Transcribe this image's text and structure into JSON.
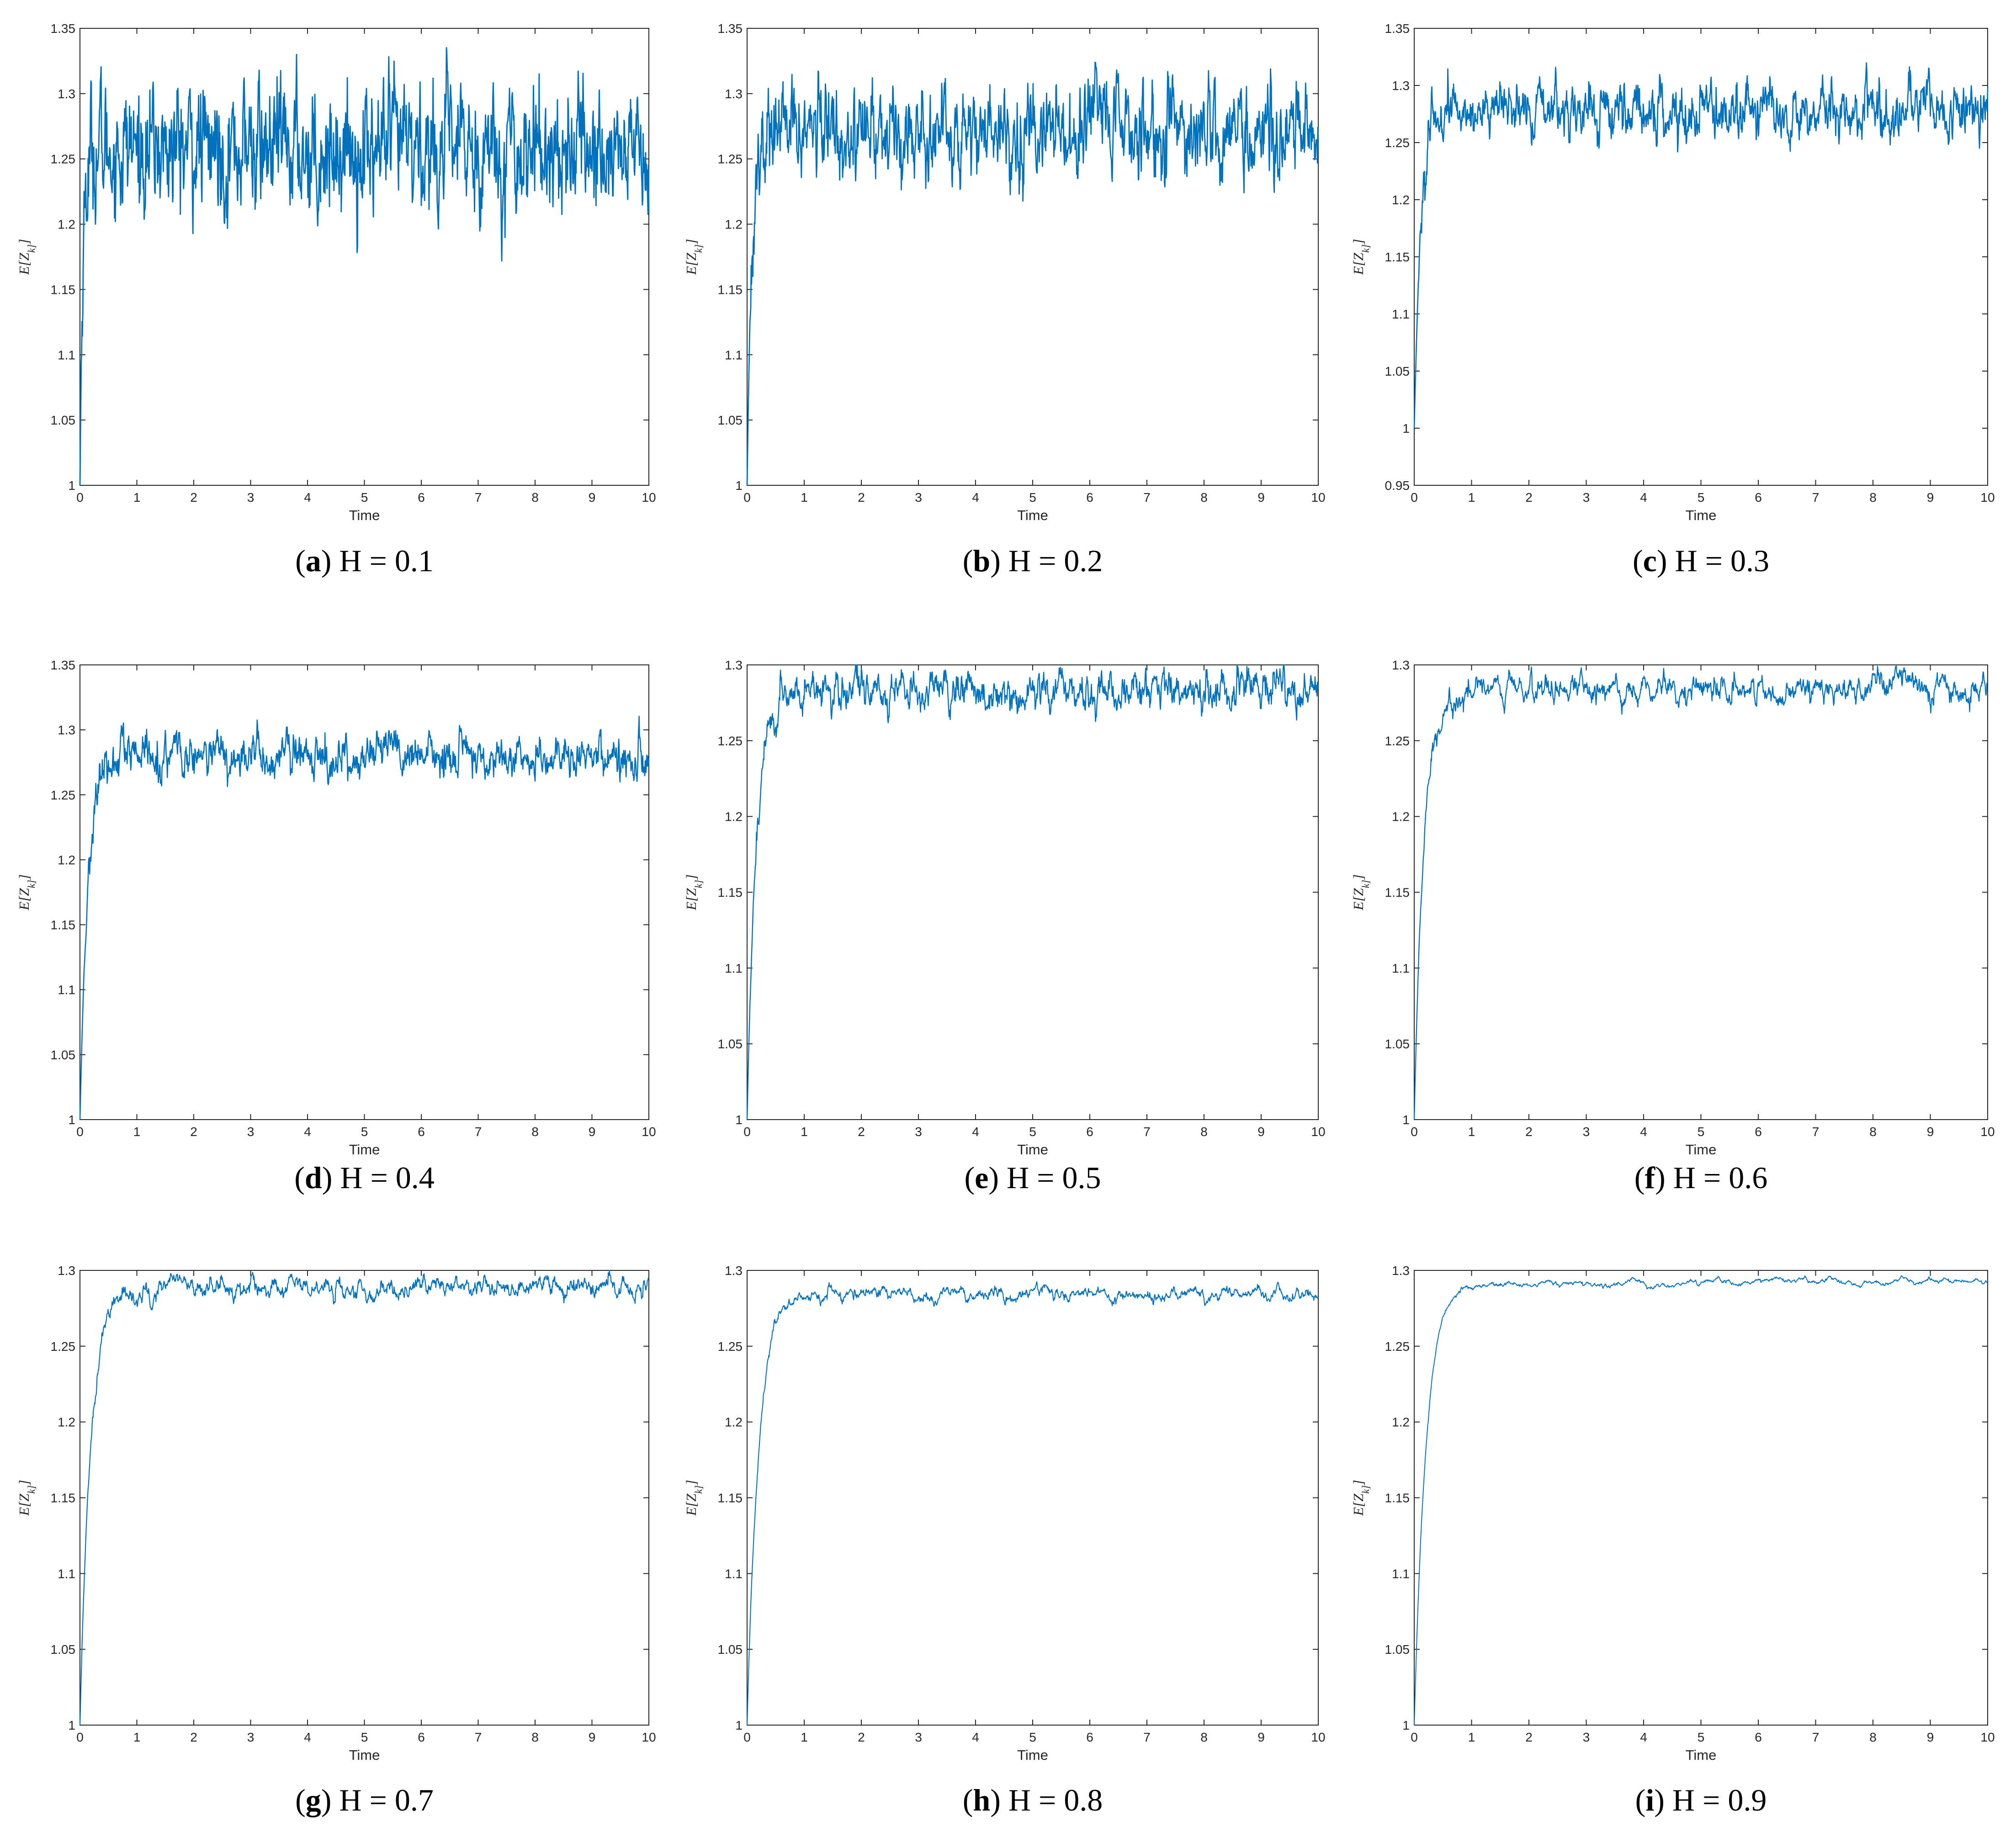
{
  "figure": {
    "series_color": "#0072bd",
    "panels": [
      {
        "letter": "a",
        "caption": "H = 0.1",
        "H": 0.1,
        "ylim": [
          1,
          1.35
        ],
        "yticks": [
          "1",
          "1.05",
          "1.1",
          "1.15",
          "1.2",
          "1.25",
          "1.3",
          "1.35"
        ],
        "plateau": 1.258,
        "rise_tau": 0.05,
        "noise": 0.025
      },
      {
        "letter": "b",
        "caption": "H = 0.2",
        "H": 0.2,
        "ylim": [
          1,
          1.35
        ],
        "yticks": [
          "1",
          "1.05",
          "1.1",
          "1.15",
          "1.2",
          "1.25",
          "1.3",
          "1.35"
        ],
        "plateau": 1.272,
        "rise_tau": 0.08,
        "noise": 0.018
      },
      {
        "letter": "c",
        "caption": "H = 0.3",
        "H": 0.3,
        "ylim": [
          0.95,
          1.35
        ],
        "yticks": [
          "0.95",
          "1",
          "1.05",
          "1.1",
          "1.15",
          "1.2",
          "1.25",
          "1.3",
          "1.35"
        ],
        "plateau": 1.278,
        "rise_tau": 0.12,
        "noise": 0.012
      },
      {
        "letter": "d",
        "caption": "H = 0.4",
        "H": 0.4,
        "ylim": [
          1,
          1.35
        ],
        "yticks": [
          "1",
          "1.05",
          "1.1",
          "1.15",
          "1.2",
          "1.25",
          "1.3",
          "1.35"
        ],
        "plateau": 1.279,
        "rise_tau": 0.14,
        "noise": 0.009
      },
      {
        "letter": "e",
        "caption": "H = 0.5",
        "H": 0.5,
        "ylim": [
          1,
          1.3
        ],
        "yticks": [
          "1",
          "1.05",
          "1.1",
          "1.15",
          "1.2",
          "1.25",
          "1.3"
        ],
        "plateau": 1.283,
        "rise_tau": 0.16,
        "noise": 0.007
      },
      {
        "letter": "f",
        "caption": "H = 0.6",
        "H": 0.6,
        "ylim": [
          1,
          1.3
        ],
        "yticks": [
          "1",
          "1.05",
          "1.1",
          "1.15",
          "1.2",
          "1.25",
          "1.3"
        ],
        "plateau": 1.284,
        "rise_tau": 0.17,
        "noise": 0.005
      },
      {
        "letter": "g",
        "caption": "H = 0.7",
        "H": 0.7,
        "ylim": [
          1,
          1.3
        ],
        "yticks": [
          "1",
          "1.05",
          "1.1",
          "1.15",
          "1.2",
          "1.25",
          "1.3"
        ],
        "plateau": 1.289,
        "rise_tau": 0.19,
        "noise": 0.004
      },
      {
        "letter": "h",
        "caption": "H = 0.8",
        "H": 0.8,
        "ylim": [
          1,
          1.3
        ],
        "yticks": [
          "1",
          "1.05",
          "1.1",
          "1.15",
          "1.2",
          "1.25",
          "1.3"
        ],
        "plateau": 1.284,
        "rise_tau": 0.2,
        "noise": 0.003
      },
      {
        "letter": "i",
        "caption": "H = 0.9",
        "H": 0.9,
        "ylim": [
          1,
          1.3
        ],
        "yticks": [
          "1",
          "1.05",
          "1.1",
          "1.15",
          "1.2",
          "1.25",
          "1.3"
        ],
        "plateau": 1.292,
        "rise_tau": 0.21,
        "noise": 0.0015
      }
    ]
  },
  "chart_data": [
    {
      "type": "line",
      "xlabel": "Time",
      "ylabel": "E[Z_k]",
      "xlim": [
        0,
        10
      ],
      "ylim": [
        1,
        1.35
      ],
      "x": [
        0,
        0.1,
        0.3,
        0.5,
        1,
        2,
        3,
        4,
        5,
        6,
        7,
        8,
        9,
        10
      ],
      "series": [
        {
          "values": [
            1.0,
            1.15,
            1.22,
            1.25,
            1.26,
            1.26,
            1.26,
            1.27,
            1.26,
            1.25,
            1.26,
            1.27,
            1.26,
            1.26
          ]
        }
      ]
    },
    {
      "type": "line",
      "xlabel": "Time",
      "ylabel": "E[Z_k]",
      "xlim": [
        0,
        10
      ],
      "ylim": [
        1,
        1.35
      ],
      "x": [
        0,
        0.1,
        0.3,
        0.5,
        1,
        2,
        3,
        4,
        5,
        6,
        7,
        8,
        9,
        10
      ],
      "series": [
        {
          "values": [
            1.0,
            1.13,
            1.22,
            1.26,
            1.27,
            1.27,
            1.27,
            1.28,
            1.26,
            1.28,
            1.26,
            1.27,
            1.27,
            1.27
          ]
        }
      ]
    },
    {
      "type": "line",
      "xlabel": "Time",
      "ylabel": "E[Z_k]",
      "xlim": [
        0,
        10
      ],
      "ylim": [
        0.95,
        1.35
      ],
      "x": [
        0,
        0.1,
        0.3,
        0.5,
        1,
        2,
        3,
        4,
        5,
        6,
        7,
        8,
        9,
        10
      ],
      "series": [
        {
          "values": [
            1.0,
            1.1,
            1.2,
            1.25,
            1.29,
            1.28,
            1.28,
            1.27,
            1.28,
            1.28,
            1.28,
            1.27,
            1.3,
            1.27
          ]
        }
      ]
    },
    {
      "type": "line",
      "xlabel": "Time",
      "ylabel": "E[Z_k]",
      "xlim": [
        0,
        10
      ],
      "ylim": [
        1,
        1.35
      ],
      "x": [
        0,
        0.1,
        0.3,
        0.5,
        1,
        2,
        3,
        4,
        5,
        6,
        7,
        8,
        9,
        10
      ],
      "series": [
        {
          "values": [
            1.0,
            1.12,
            1.23,
            1.27,
            1.28,
            1.28,
            1.28,
            1.27,
            1.28,
            1.27,
            1.28,
            1.28,
            1.27,
            1.29
          ]
        }
      ]
    },
    {
      "type": "line",
      "xlabel": "Time",
      "ylabel": "E[Z_k]",
      "xlim": [
        0,
        10
      ],
      "ylim": [
        1,
        1.3
      ],
      "x": [
        0,
        0.1,
        0.3,
        0.5,
        1,
        2,
        3,
        4,
        5,
        6,
        7,
        8,
        9,
        10
      ],
      "series": [
        {
          "values": [
            1.0,
            1.1,
            1.2,
            1.26,
            1.28,
            1.29,
            1.28,
            1.28,
            1.28,
            1.28,
            1.29,
            1.29,
            1.28,
            1.27
          ]
        }
      ]
    },
    {
      "type": "line",
      "xlabel": "Time",
      "ylabel": "E[Z_k]",
      "xlim": [
        0,
        10
      ],
      "ylim": [
        1,
        1.3
      ],
      "x": [
        0,
        0.1,
        0.3,
        0.5,
        1,
        2,
        3,
        4,
        5,
        6,
        7,
        8,
        9,
        10
      ],
      "series": [
        {
          "values": [
            1.0,
            1.12,
            1.23,
            1.27,
            1.28,
            1.29,
            1.28,
            1.28,
            1.29,
            1.28,
            1.29,
            1.28,
            1.29,
            1.28
          ]
        }
      ]
    },
    {
      "type": "line",
      "xlabel": "Time",
      "ylabel": "E[Z_k]",
      "xlim": [
        0,
        10
      ],
      "ylim": [
        1,
        1.3
      ],
      "x": [
        0,
        0.1,
        0.3,
        0.5,
        1,
        2,
        3,
        4,
        5,
        6,
        7,
        8,
        9,
        10
      ],
      "series": [
        {
          "values": [
            1.0,
            1.12,
            1.22,
            1.27,
            1.29,
            1.29,
            1.29,
            1.29,
            1.29,
            1.29,
            1.29,
            1.29,
            1.29,
            1.29
          ]
        }
      ]
    },
    {
      "type": "line",
      "xlabel": "Time",
      "ylabel": "E[Z_k]",
      "xlim": [
        0,
        10
      ],
      "ylim": [
        1,
        1.3
      ],
      "x": [
        0,
        0.1,
        0.3,
        0.5,
        1,
        2,
        3,
        4,
        5,
        6,
        7,
        8,
        9,
        10
      ],
      "series": [
        {
          "values": [
            1.0,
            1.1,
            1.21,
            1.26,
            1.28,
            1.28,
            1.28,
            1.28,
            1.29,
            1.28,
            1.29,
            1.29,
            1.28,
            1.28
          ]
        }
      ]
    },
    {
      "type": "line",
      "xlabel": "Time",
      "ylabel": "E[Z_k]",
      "xlim": [
        0,
        10
      ],
      "ylim": [
        1,
        1.3
      ],
      "x": [
        0,
        0.1,
        0.3,
        0.5,
        1,
        2,
        3,
        4,
        5,
        6,
        7,
        8,
        9,
        10
      ],
      "series": [
        {
          "values": [
            1.0,
            1.1,
            1.21,
            1.26,
            1.29,
            1.29,
            1.29,
            1.29,
            1.29,
            1.29,
            1.29,
            1.29,
            1.29,
            1.28
          ]
        }
      ]
    }
  ]
}
